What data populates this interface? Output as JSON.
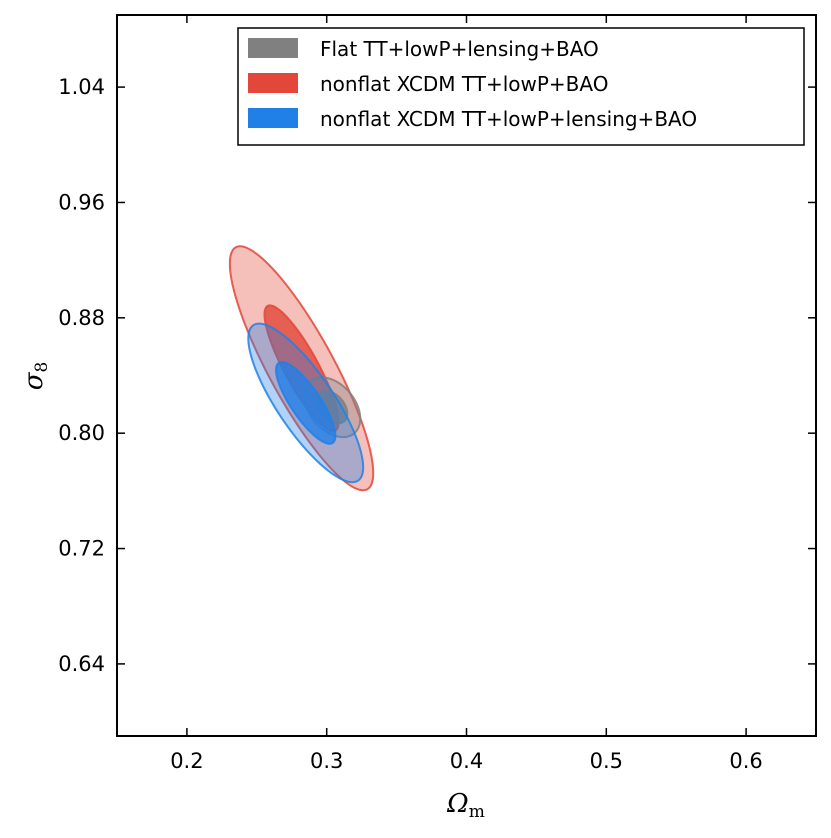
{
  "chart_data": {
    "type": "contour",
    "title": "",
    "xlabel": "Ω",
    "xlabel_subscript": "m",
    "ylabel": "σ",
    "ylabel_subscript": "8",
    "xlim": [
      0.15,
      0.65
    ],
    "ylim": [
      0.59,
      1.09
    ],
    "x_ticks": [
      0.2,
      0.3,
      0.4,
      0.5,
      0.6
    ],
    "x_tick_labels": [
      "0.2",
      "0.3",
      "0.4",
      "0.5",
      "0.6"
    ],
    "y_ticks": [
      0.64,
      0.72,
      0.8,
      0.88,
      0.96,
      1.04
    ],
    "y_tick_labels": [
      "0.64",
      "0.72",
      "0.80",
      "0.88",
      "0.96",
      "1.04"
    ],
    "grid": false,
    "legend_position": "top-right",
    "colors": {
      "flat": "#808080",
      "xcdm_noLens": "#e2473a",
      "xcdm_lens": "#2080e8"
    },
    "series": [
      {
        "name": "nonflat XCDM TT+lowP+BAO",
        "color": "#e2473a",
        "center": [
          0.282,
          0.845
        ],
        "contours": [
          {
            "level": "2sigma",
            "semi_major": 0.097,
            "semi_minor": 0.023,
            "angle_deg": -61.5
          },
          {
            "level": "1sigma",
            "semi_major": 0.05,
            "semi_minor": 0.012,
            "angle_deg": -61.5
          }
        ]
      },
      {
        "name": "Flat TT+lowP+lensing+BAO",
        "color": "#808080",
        "center": [
          0.304,
          0.818
        ],
        "contours": [
          {
            "level": "2sigma",
            "semi_major": 0.024,
            "semi_minor": 0.016,
            "angle_deg": -50
          },
          {
            "level": "1sigma",
            "semi_major": 0.013,
            "semi_minor": 0.0085,
            "angle_deg": -50
          }
        ]
      },
      {
        "name": "nonflat XCDM TT+lowP+lensing+BAO",
        "color": "#2080e8",
        "center": [
          0.285,
          0.821
        ],
        "contours": [
          {
            "level": "2sigma",
            "semi_major": 0.066,
            "semi_minor": 0.02,
            "angle_deg": -56
          },
          {
            "level": "1sigma",
            "semi_major": 0.034,
            "semi_minor": 0.0105,
            "angle_deg": -56
          }
        ]
      }
    ],
    "legend": [
      {
        "label": "Flat TT+lowP+lensing+BAO",
        "color": "#808080"
      },
      {
        "label": "nonflat XCDM TT+lowP+BAO",
        "color": "#e2473a"
      },
      {
        "label": "nonflat XCDM TT+lowP+lensing+BAO",
        "color": "#2080e8"
      }
    ]
  }
}
